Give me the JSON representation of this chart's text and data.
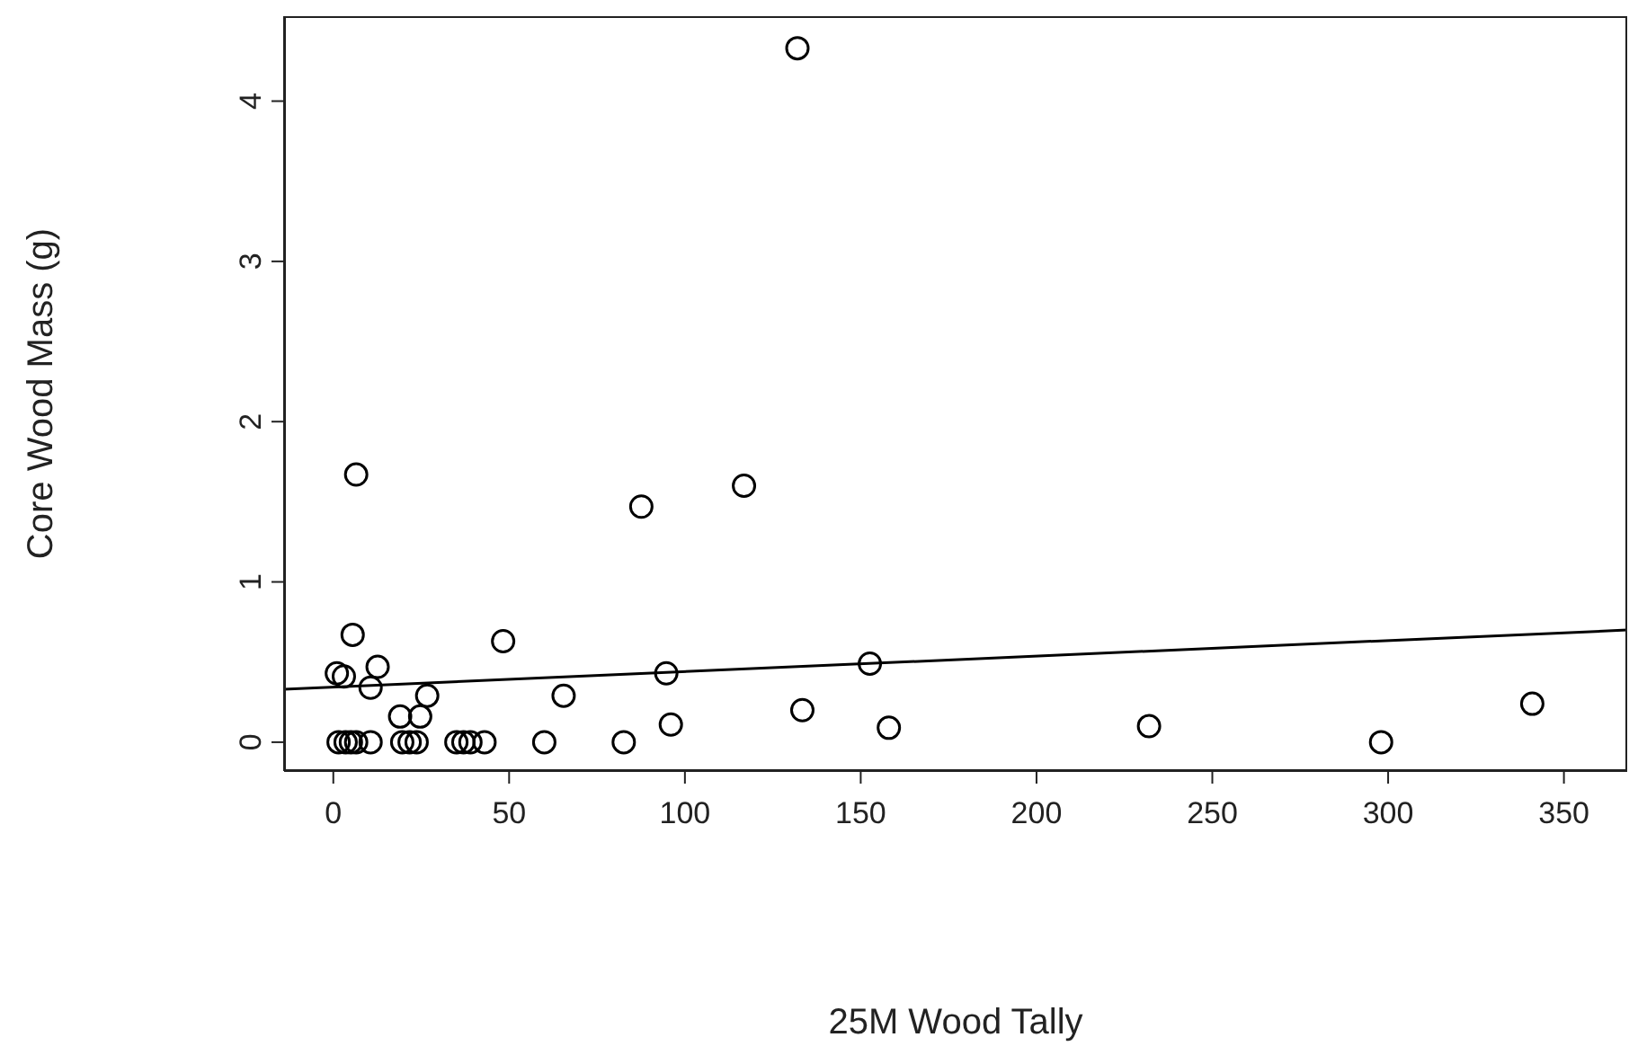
{
  "chart_data": {
    "type": "scatter",
    "xlabel": "25M Wood Tally",
    "ylabel": "Core Wood Mass (g)",
    "xlim": [
      -14,
      368
    ],
    "ylim": [
      -0.18,
      4.53
    ],
    "xticks": [
      0,
      50,
      100,
      150,
      200,
      250,
      300,
      350
    ],
    "yticks": [
      0,
      1,
      2,
      3,
      4
    ],
    "marker": "circle",
    "series": [
      {
        "color": "#000000",
        "x": [
          6.5,
          5.5,
          1,
          3,
          12.6,
          10.6,
          26.7,
          19,
          24.7,
          1.5,
          3.5,
          5,
          6.5,
          10.6,
          19.6,
          21.7,
          23.7,
          35,
          37,
          39,
          43,
          60,
          82.6,
          48.3,
          65.5,
          87.6,
          94.7,
          96,
          116.8,
          133.4,
          152.6,
          158,
          232,
          298,
          341,
          132
        ],
        "values": [
          1.67,
          0.67,
          0.43,
          0.41,
          0.47,
          0.34,
          0.29,
          0.16,
          0.16,
          0,
          0,
          0,
          0,
          0,
          0,
          0,
          0,
          0,
          0,
          0,
          0,
          0,
          0,
          0.63,
          0.29,
          1.47,
          0.43,
          0.11,
          1.6,
          0.2,
          0.49,
          0.09,
          0.1,
          0,
          0.24,
          4.33
        ]
      },
      {
        "type": "line",
        "color": "#000000",
        "marker": "none",
        "line_style": "solid",
        "x": [
          -14,
          368
        ],
        "values": [
          0.33,
          0.7
        ]
      }
    ]
  }
}
